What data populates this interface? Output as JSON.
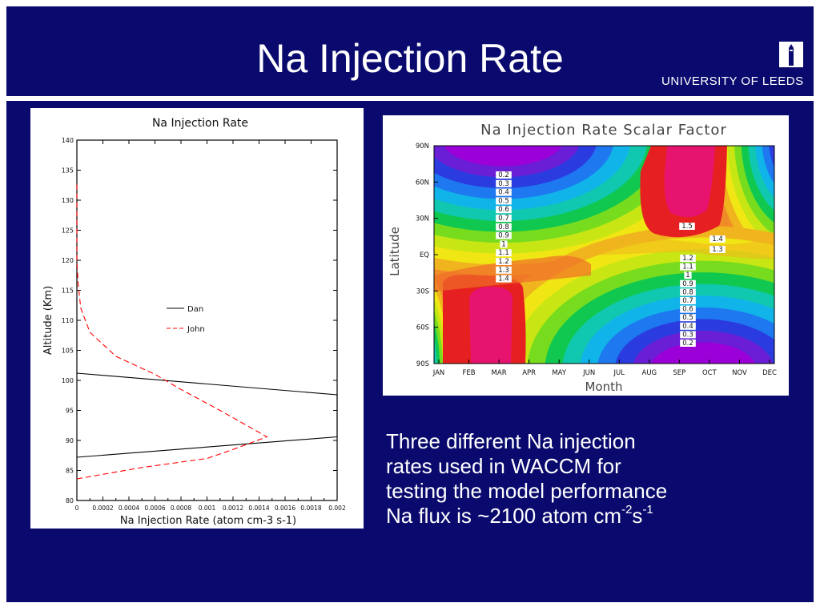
{
  "slide": {
    "title": "Na Injection Rate",
    "logo_text": "UNIVERSITY OF LEEDS",
    "caption": {
      "line1": "Three different Na injection",
      "line2": "rates  used in WACCM for",
      "line3": "testing the model performance",
      "line4_text": "Na flux is ~2100 atom cm",
      "line4_sup1": "-2",
      "line4_mid": "s",
      "line4_sup2": "-1"
    }
  },
  "chart_data": [
    {
      "type": "line",
      "title": "Na Injection Rate",
      "xlabel": "Na Injection Rate (atom cm-3 s-1)",
      "ylabel": "Altitude (Km)",
      "xlim": [
        0,
        0.002
      ],
      "ylim": [
        80,
        140
      ],
      "xticks": [
        "0",
        "0.0002",
        "0.0004",
        "0.0006",
        "0.0008",
        "0.001",
        "0.0012",
        "0.0014",
        "0.0016",
        "0.0018",
        "0.002"
      ],
      "yticks": [
        "80",
        "85",
        "90",
        "95",
        "100",
        "105",
        "110",
        "115",
        "120",
        "125",
        "130",
        "135",
        "140"
      ],
      "legend_position": "middle",
      "series": [
        {
          "name": "Dan",
          "color": "#000000",
          "style": "solid",
          "points": [
            [
              0,
              87.2
            ],
            [
              0.002,
              90.6
            ],
            [
              0.002,
              97.6
            ],
            [
              0,
              101.2
            ]
          ]
        },
        {
          "name": "John",
          "color": "#ff0000",
          "style": "dashed",
          "points": [
            [
              0,
              83.6
            ],
            [
              0.0005,
              85.5
            ],
            [
              0.001,
              87.0
            ],
            [
              0.0012,
              88.5
            ],
            [
              0.00146,
              90.6
            ],
            [
              0.0011,
              95.0
            ],
            [
              0.0008,
              98.5
            ],
            [
              0.0006,
              101.0
            ],
            [
              0.0003,
              104.0
            ],
            [
              0.0001,
              108.0
            ],
            [
              3e-05,
              112.0
            ],
            [
              1e-05,
              116.0
            ],
            [
              0,
              120.0
            ],
            [
              0,
              133.0
            ]
          ]
        }
      ]
    },
    {
      "type": "heatmap",
      "title": "Na Injection Rate Scalar Factor",
      "xlabel": "Month",
      "ylabel": "Latitude",
      "x": [
        "JAN",
        "FEB",
        "MAR",
        "APR",
        "MAY",
        "JUN",
        "JUL",
        "AUG",
        "SEP",
        "OCT",
        "NOV",
        "DEC"
      ],
      "y_ticks": [
        "90N",
        "60N",
        "30N",
        "EQ",
        "30S",
        "60S",
        "90S"
      ],
      "contour_levels": [
        0.2,
        0.3,
        0.4,
        0.5,
        0.6,
        0.7,
        0.8,
        0.9,
        1,
        1.1,
        1.2,
        1.3,
        1.4,
        1.5
      ],
      "labels_left": [
        "0.2",
        "0.3",
        "0.4",
        "0.5",
        "0.6",
        "0.7",
        "0.8",
        "0.9",
        "1",
        "1.1",
        "1.2",
        "1.3",
        "1.4"
      ],
      "labels_right": [
        "1.2",
        "1.1",
        "1",
        "0.9",
        "0.8",
        "0.7",
        "0.6",
        "0.5",
        "0.4",
        "0.3",
        "0.2"
      ],
      "labels_other": [
        "1.5",
        "1.4",
        "1.3"
      ],
      "colors": [
        "#9b00d8",
        "#6a1fd6",
        "#2a3ce0",
        "#1e78f0",
        "#10b4e8",
        "#10c8b0",
        "#10c850",
        "#78dc1e",
        "#c8e614",
        "#f0e614",
        "#f0b41e",
        "#f08c28",
        "#f06e28",
        "#e62020",
        "#e6146e"
      ]
    }
  ]
}
